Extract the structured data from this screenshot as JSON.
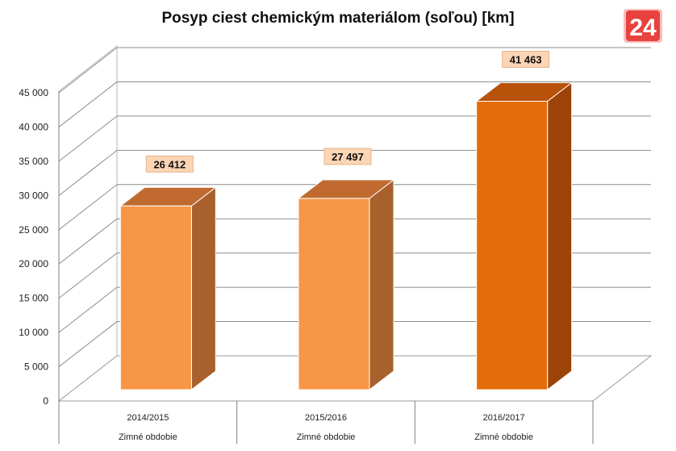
{
  "chart_data": {
    "type": "bar",
    "title": "Posyp ciest chemickým materiálom (soľou) [km]",
    "categories": [
      "2014/2015",
      "2015/2016",
      "2016/2017"
    ],
    "category_sublabel": "Zimné obdobie",
    "values": [
      26412,
      27497,
      41463
    ],
    "value_labels": [
      "26 412",
      "27 497",
      "41 463"
    ],
    "yticks": [
      0,
      5000,
      10000,
      15000,
      20000,
      25000,
      30000,
      35000,
      40000,
      45000
    ],
    "ytick_labels": [
      "0",
      "5 000",
      "10 000",
      "15 000",
      "20 000",
      "25 000",
      "30 000",
      "35 000",
      "40 000",
      "45 000"
    ],
    "ylim": [
      0,
      45000
    ],
    "grid": true,
    "legend": "none",
    "style": "3d-columns",
    "colors": {
      "bar": "#f79646",
      "bar_highlight": "#e46c0a",
      "label_bg": "#fcd5b4"
    }
  },
  "logo": {
    "text": "24",
    "color": "#e8423f"
  }
}
